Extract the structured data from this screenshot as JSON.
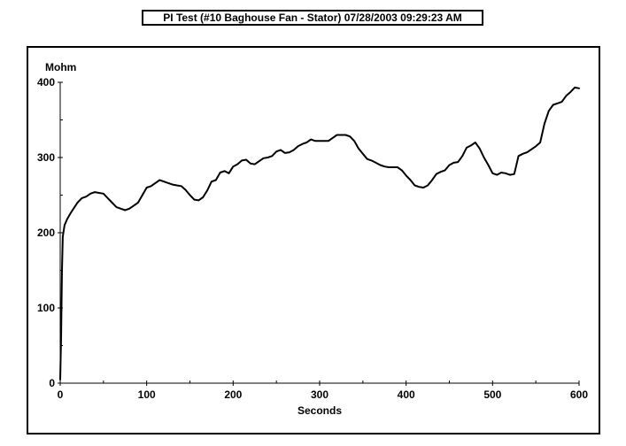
{
  "title": "PI Test (#10 Baghouse Fan - Stator) 07/28/2003 09:29:23 AM",
  "chart_data": {
    "type": "line",
    "title": "PI Test (#10 Baghouse Fan - Stator) 07/28/2003 09:29:23 AM",
    "xlabel": "Seconds",
    "ylabel": "Mohm",
    "xlim": [
      0,
      600
    ],
    "ylim": [
      0,
      400
    ],
    "x_ticks": [
      0,
      100,
      200,
      300,
      400,
      500,
      600
    ],
    "y_ticks": [
      0,
      100,
      200,
      300,
      400
    ],
    "x_minor_step": 50,
    "y_minor_step": 50,
    "grid": false,
    "line_color": "#000000",
    "series": [
      {
        "x": [
          0,
          1,
          2,
          3,
          5,
          8,
          12,
          16,
          20,
          25,
          30,
          35,
          40,
          45,
          50,
          55,
          60,
          65,
          70,
          75,
          80,
          85,
          90,
          95,
          100,
          105,
          110,
          115,
          120,
          125,
          130,
          135,
          140,
          145,
          150,
          155,
          160,
          165,
          170,
          175,
          180,
          185,
          190,
          195,
          200,
          205,
          210,
          215,
          220,
          225,
          230,
          235,
          240,
          245,
          250,
          255,
          260,
          265,
          270,
          275,
          280,
          285,
          290,
          295,
          300,
          305,
          310,
          315,
          320,
          325,
          330,
          335,
          340,
          345,
          350,
          355,
          360,
          365,
          370,
          375,
          380,
          385,
          390,
          395,
          400,
          405,
          410,
          415,
          420,
          425,
          430,
          435,
          440,
          445,
          450,
          455,
          460,
          465,
          470,
          475,
          480,
          485,
          490,
          495,
          500,
          505,
          510,
          515,
          520,
          525,
          530,
          535,
          540,
          545,
          550,
          555,
          560,
          565,
          570,
          575,
          580,
          585,
          590,
          595,
          600
        ],
        "y": [
          5,
          60,
          150,
          195,
          210,
          218,
          226,
          233,
          240,
          246,
          248,
          252,
          254,
          253,
          252,
          246,
          240,
          234,
          232,
          230,
          232,
          236,
          240,
          250,
          260,
          262,
          266,
          270,
          268,
          266,
          264,
          263,
          262,
          257,
          250,
          244,
          243,
          247,
          256,
          268,
          270,
          280,
          282,
          279,
          288,
          291,
          296,
          297,
          292,
          291,
          295,
          299,
          300,
          302,
          308,
          310,
          306,
          307,
          310,
          315,
          318,
          320,
          324,
          322,
          322,
          322,
          322,
          326,
          330,
          330,
          330,
          328,
          322,
          312,
          305,
          298,
          296,
          293,
          290,
          288,
          287,
          287,
          287,
          283,
          276,
          270,
          263,
          261,
          260,
          263,
          270,
          278,
          281,
          283,
          290,
          293,
          294,
          302,
          313,
          316,
          320,
          312,
          300,
          290,
          279,
          277,
          280,
          279,
          277,
          278,
          302,
          305,
          307,
          311,
          315,
          320,
          345,
          362,
          370,
          372,
          374,
          382,
          387,
          393,
          392
        ]
      }
    ]
  }
}
